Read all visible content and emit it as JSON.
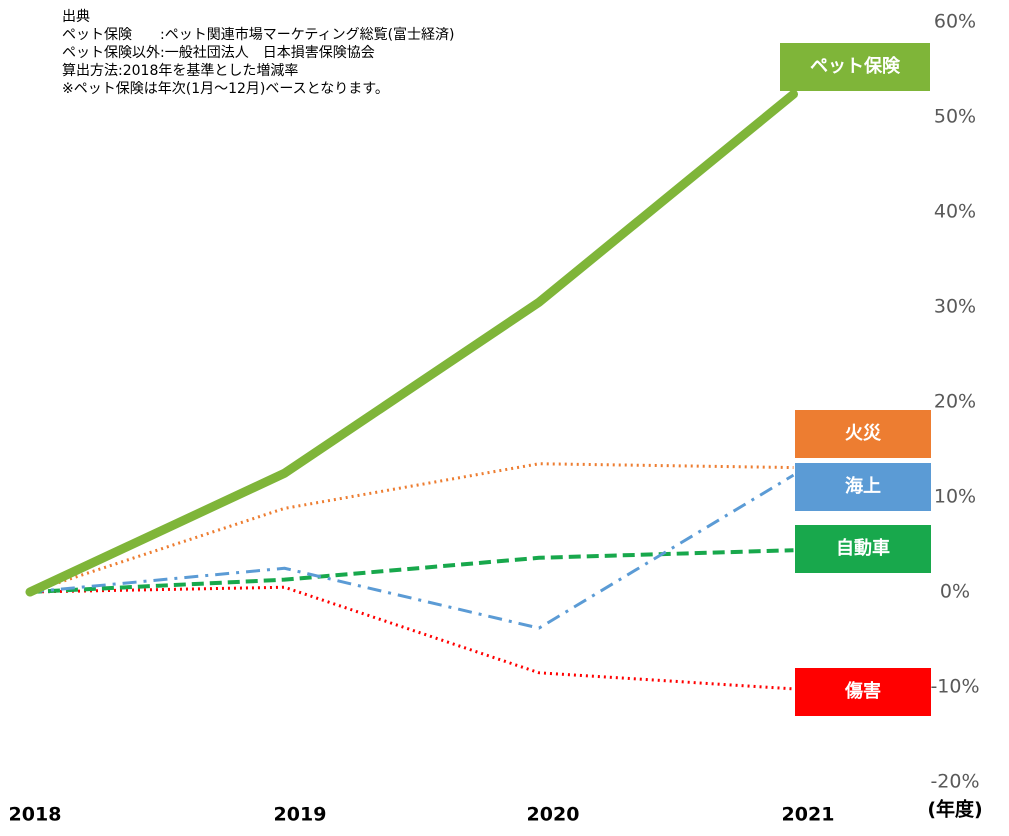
{
  "chart_data": {
    "type": "line",
    "notes": [
      "出典",
      "ペット保険　　:ペット関連市場マーケティング総覧(富士経済)",
      "ペット保険以外:一般社団法人　日本損害保険協会",
      "算出方法:2018年を基準とした増減率",
      "※ペット保険は年次(1月～12月)ベースとなります。"
    ],
    "categories": [
      "2018",
      "2019",
      "2020",
      "2021"
    ],
    "x_label": "(年度)",
    "ylim": [
      -20,
      60
    ],
    "yticks": [
      {
        "value": -20,
        "label": "-20%"
      },
      {
        "value": -10,
        "label": "-10%"
      },
      {
        "value": 0,
        "label": "0%"
      },
      {
        "value": 10,
        "label": "10%"
      },
      {
        "value": 20,
        "label": "20%"
      },
      {
        "value": 30,
        "label": "30%"
      },
      {
        "value": 40,
        "label": "40%"
      },
      {
        "value": 50,
        "label": "50%"
      },
      {
        "value": 60,
        "label": "60%"
      }
    ],
    "series": [
      {
        "name": "ペット保険",
        "color": "#7fb539",
        "line_style": "solid",
        "values": [
          0,
          12.5,
          30.5,
          52.4
        ]
      },
      {
        "name": "火災",
        "color": "#ed7d31",
        "line_style": "dotted",
        "values": [
          0,
          8.8,
          13.5,
          13.1
        ]
      },
      {
        "name": "海上",
        "color": "#5b9bd5",
        "line_style": "dash-dot",
        "values": [
          0,
          2.5,
          -3.8,
          12.3
        ]
      },
      {
        "name": "自動車",
        "color": "#18a84c",
        "line_style": "dashed",
        "values": [
          0,
          1.3,
          3.6,
          4.4
        ]
      },
      {
        "name": "傷害",
        "color": "#ff0000",
        "line_style": "dotted",
        "values": [
          0,
          0.5,
          -8.5,
          -10.2
        ]
      }
    ]
  }
}
